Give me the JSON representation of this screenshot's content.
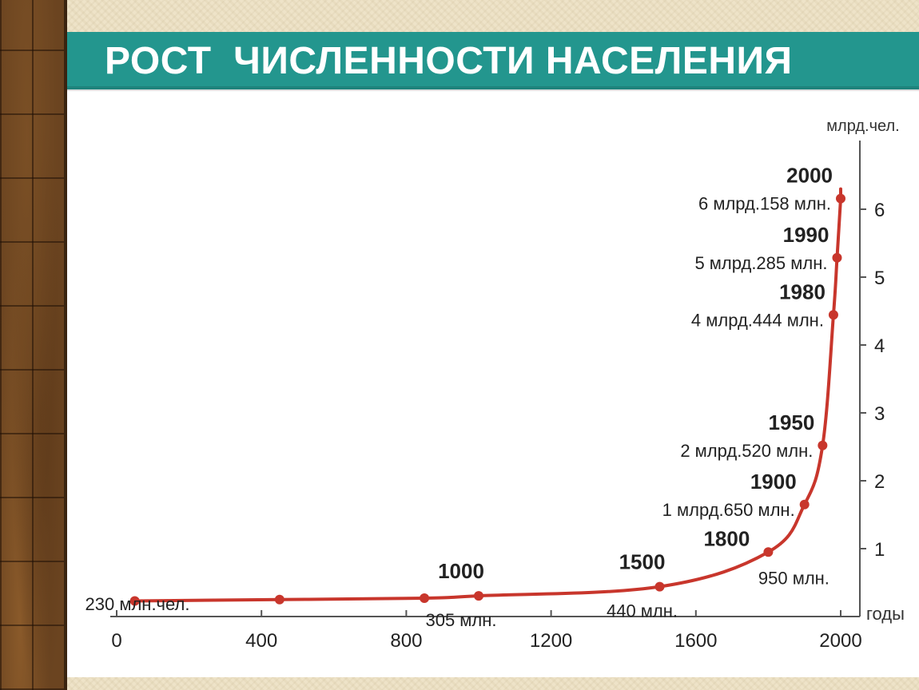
{
  "chart_data": {
    "type": "line",
    "title": "РОСТ  ЧИСЛЕННОСТИ НАСЕЛЕНИЯ",
    "xlabel": "годы",
    "ylabel": "млрд.чел.",
    "xlim": [
      0,
      2000
    ],
    "ylim": [
      0,
      6.5
    ],
    "x_ticks": [
      "0",
      "400",
      "800",
      "1200",
      "1600",
      "2000"
    ],
    "y_ticks": [
      "1",
      "2",
      "3",
      "4",
      "5",
      "6"
    ],
    "grid": false,
    "legend": "none",
    "line_color": "#c8362c",
    "points": [
      {
        "x": 50,
        "y": 0.23
      },
      {
        "x": 450,
        "y": 0.25
      },
      {
        "x": 850,
        "y": 0.27
      },
      {
        "x": 1000,
        "y": 0.305,
        "year_label": "1000",
        "value_label": "305 млн."
      },
      {
        "x": 1500,
        "y": 0.44,
        "year_label": "1500",
        "value_label": "440 млн."
      },
      {
        "x": 1800,
        "y": 0.95,
        "year_label": "1800",
        "value_label": "950 млн."
      },
      {
        "x": 1900,
        "y": 1.65,
        "year_label": "1900",
        "value_label": "1 млрд.650 млн."
      },
      {
        "x": 1950,
        "y": 2.52,
        "year_label": "1950",
        "value_label": "2 млрд.520 млн."
      },
      {
        "x": 1980,
        "y": 4.444,
        "year_label": "1980",
        "value_label": "4 млрд.444 млн."
      },
      {
        "x": 1990,
        "y": 5.285,
        "year_label": "1990",
        "value_label": "5 млрд.285 млн."
      },
      {
        "x": 2000,
        "y": 6.158,
        "year_label": "2000",
        "value_label": "6 млрд.158 млн."
      }
    ],
    "start_annotation": "230 млн.чел."
  },
  "theme": {
    "title_band_color": "#23968e",
    "panel_color": "#ffffff",
    "frame_color": "#6b4420"
  }
}
